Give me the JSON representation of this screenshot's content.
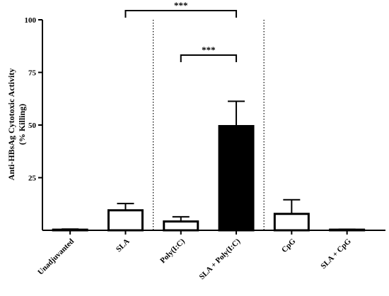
{
  "chart_data": {
    "type": "bar",
    "title": "",
    "xlabel": "",
    "ylabel_line1": "Anti-HBsAg Cytotoxic Activity",
    "ylabel_line2": "(% Killing)",
    "ylim": [
      0,
      100
    ],
    "yticks": [
      25,
      50,
      75,
      100
    ],
    "grid": false,
    "legend": "none",
    "categories": [
      "Unadjuvanted",
      "SLA",
      "Poly(I:C)",
      "SLA + Poly(I:C)",
      "CpG",
      "SLA + CpG"
    ],
    "values": [
      0.3,
      9.5,
      4.2,
      49.5,
      7.8,
      0.3
    ],
    "errors": [
      0.3,
      3.2,
      2.2,
      11.8,
      6.7,
      0.2
    ],
    "fills": [
      "#ffffff",
      "#ffffff",
      "#ffffff",
      "#000000",
      "#ffffff",
      "#ffffff"
    ],
    "group_separators_after_index": [
      1,
      3
    ],
    "significance": [
      {
        "from": "SLA",
        "to": "SLA + Poly(I:C)",
        "label": "***"
      },
      {
        "from": "Poly(I:C)",
        "to": "SLA + Poly(I:C)",
        "label": "***"
      }
    ]
  }
}
